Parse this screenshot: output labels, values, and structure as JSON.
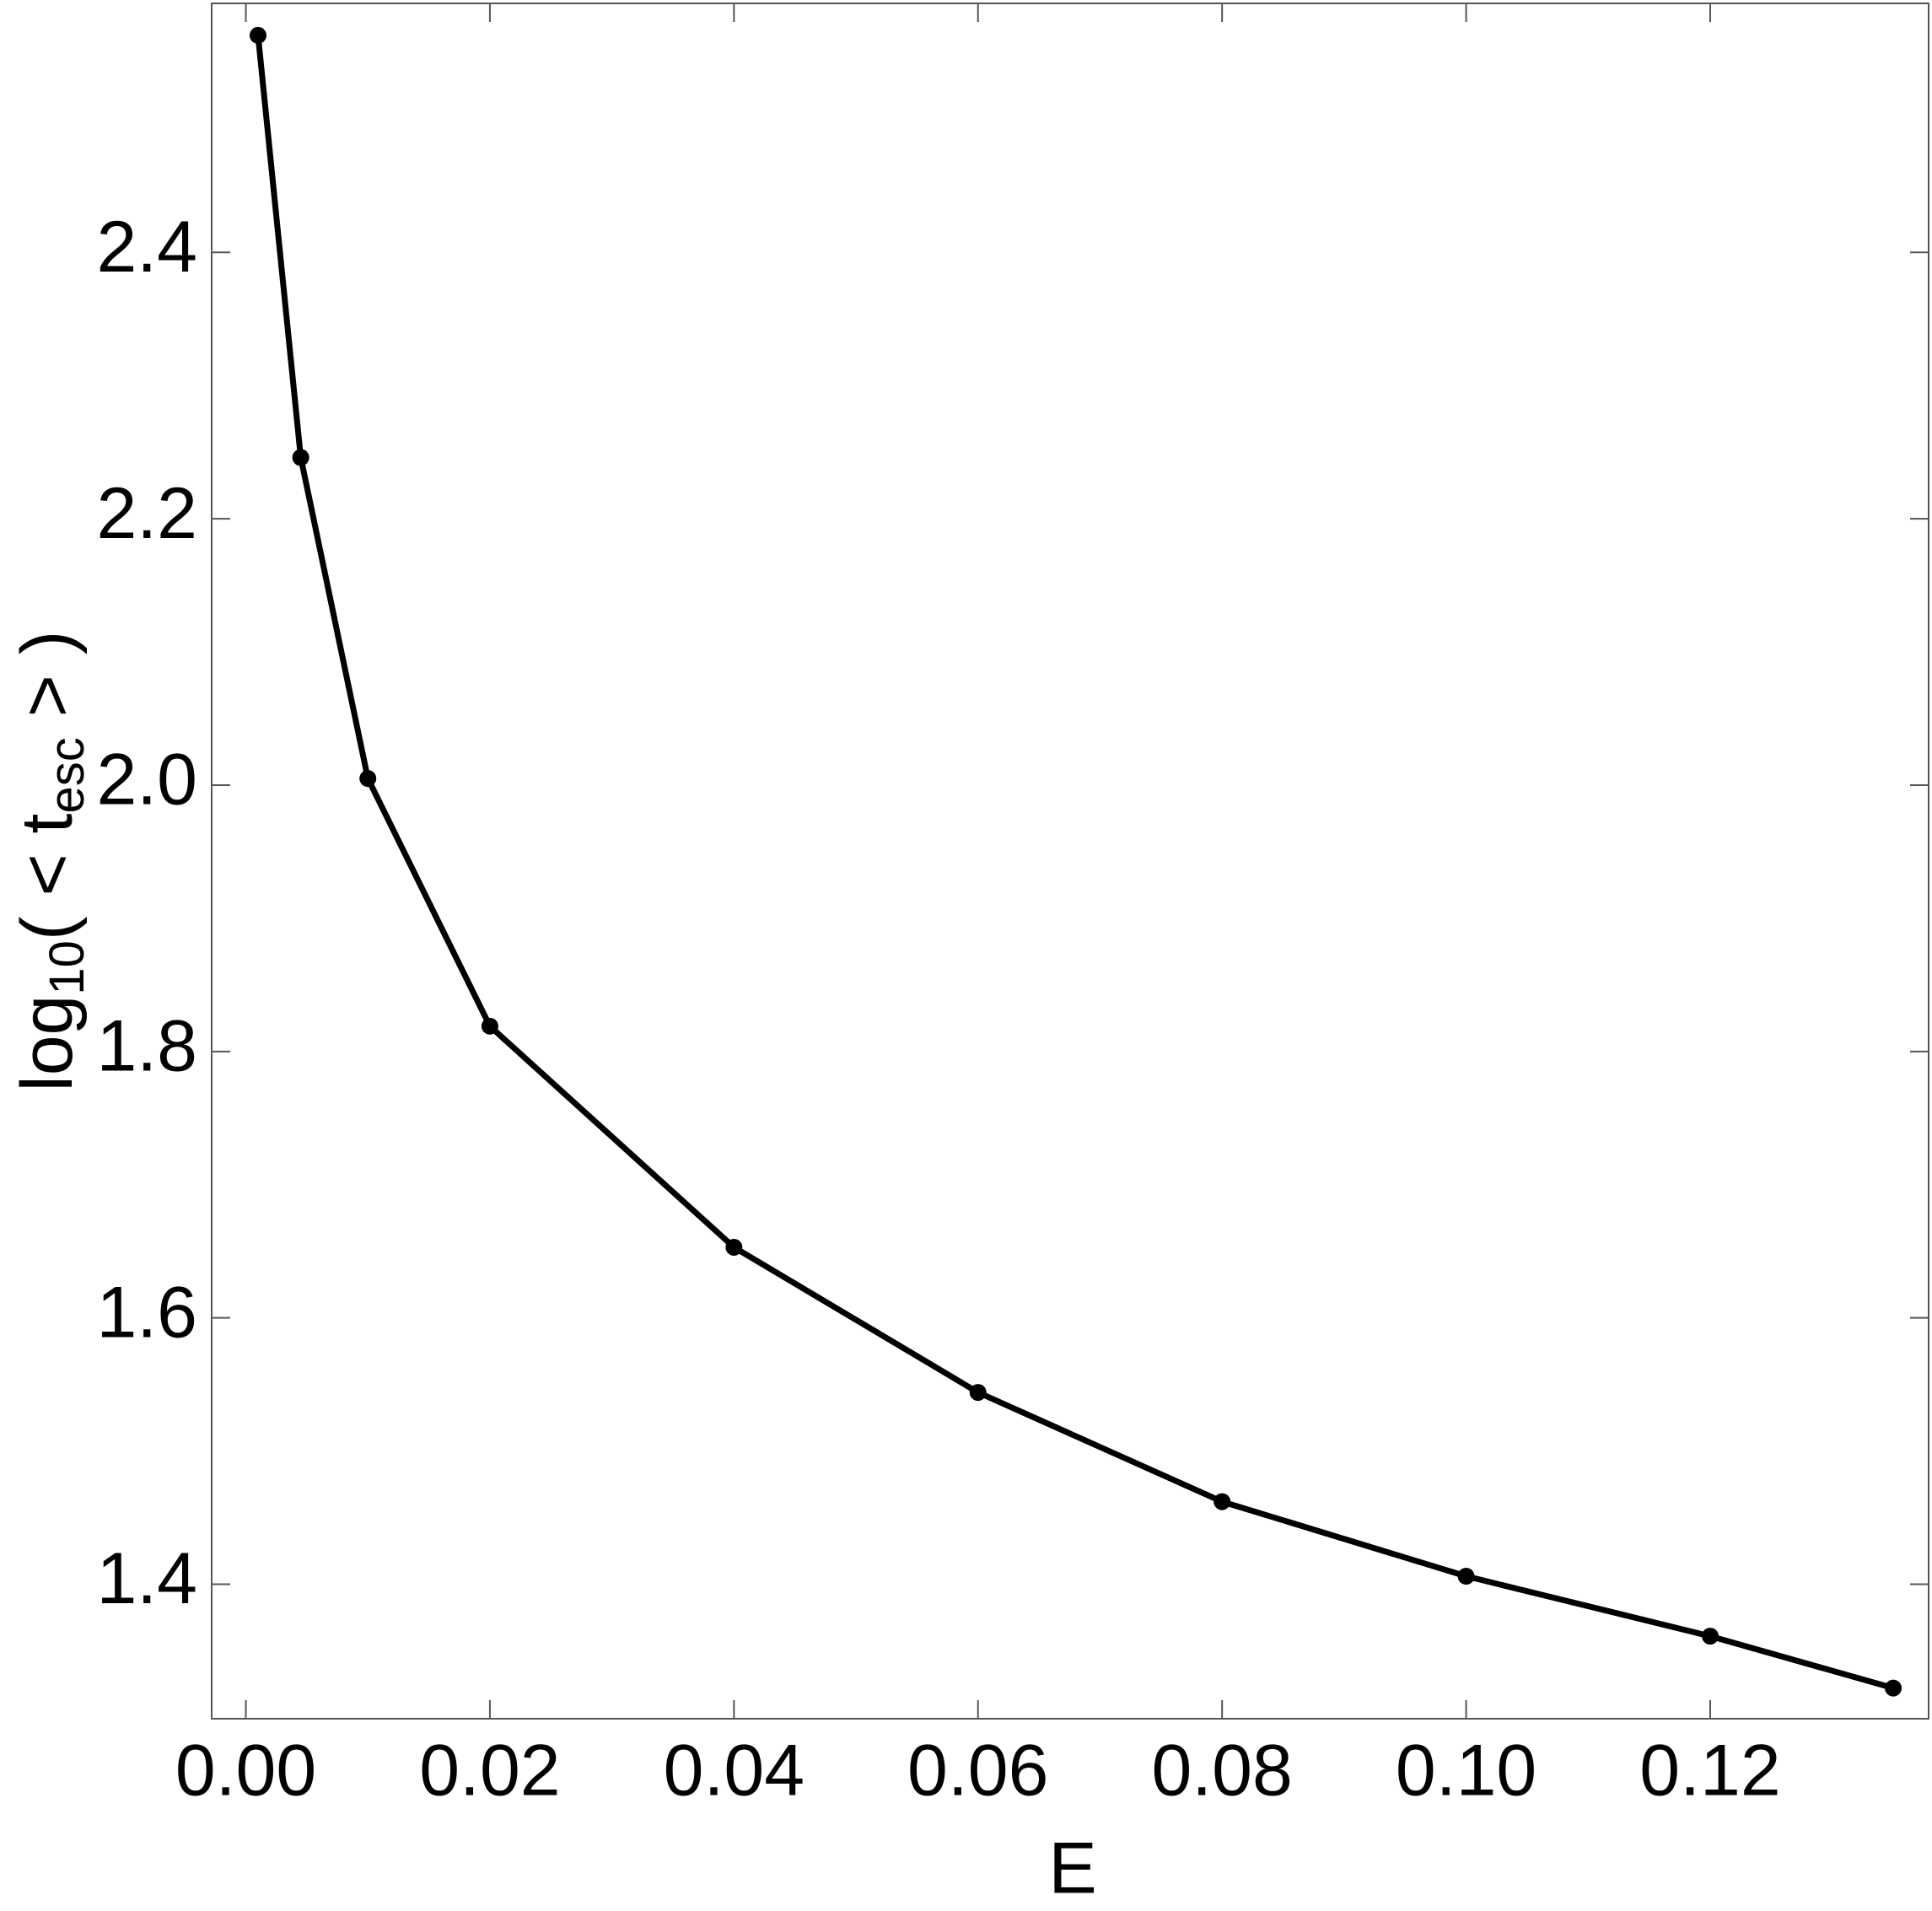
{
  "chart_data": {
    "type": "line",
    "xlabel": "E",
    "ylabel": [
      "log",
      "10",
      "( < t",
      "esc",
      " > )"
    ],
    "x": [
      0.001,
      0.0045,
      0.01,
      0.02,
      0.04,
      0.06,
      0.08,
      0.1,
      0.12,
      0.135
    ],
    "series": [
      {
        "color": "#000000",
        "values": [
          2.563,
          2.246,
          2.005,
          1.819,
          1.653,
          1.544,
          1.462,
          1.406,
          1.361,
          1.322
        ]
      }
    ],
    "markers": true,
    "xlim": [
      -0.0028,
      0.1379
    ],
    "ylim": [
      1.299,
      2.587
    ],
    "xticks": [
      {
        "value": 0,
        "label": "0.00"
      },
      0.02,
      0.04,
      0.06,
      0.08,
      {
        "value": 0.1,
        "label": "0.10"
      },
      0.12
    ],
    "yticks": [
      1.4,
      1.6,
      1.8,
      {
        "value": 2,
        "label": "2.0"
      },
      2.2,
      2.4
    ]
  }
}
